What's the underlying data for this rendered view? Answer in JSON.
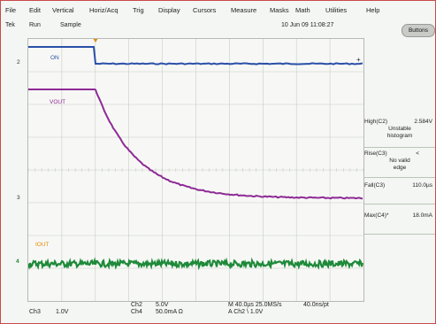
{
  "menu": [
    "File",
    "Edit",
    "Vertical",
    "Horiz/Acq",
    "Trig",
    "Display",
    "Cursors",
    "Measure",
    "Masks",
    "Math",
    "Utilities",
    "Help"
  ],
  "status": {
    "brand": "Tek",
    "run": "Run",
    "mode": "Sample",
    "datetime": "10 Jun 09 11:08:27"
  },
  "buttons_label": "Buttons",
  "channel_markers": {
    "ch2": "2",
    "ch3": "3",
    "ch4": "4"
  },
  "waveform_labels": {
    "on": "ON",
    "vout": "VOUT",
    "iout": "IOUT"
  },
  "measurements": [
    {
      "label": "High(C2)",
      "value": "2.584V",
      "sub": [
        "Unstable",
        "histogram"
      ]
    },
    {
      "label": "Rise(C3)",
      "value": "<",
      "sub": [
        "No valid",
        "edge"
      ]
    },
    {
      "label": "Fall(C3)",
      "value": "110.0µs",
      "sub": []
    },
    {
      "label": "Max(C4)*",
      "value": "18.0mA",
      "sub": []
    }
  ],
  "bottom": {
    "ch3_label": "Ch3",
    "ch3_scale": "1.0V",
    "ch2_label": "Ch2",
    "ch2_scale": "5.0V",
    "ch4_label": "Ch4",
    "ch4_scale": "50.0mA Ω",
    "timebase": "M 40.0µs 25.0MS/s",
    "record": "40.0ns/pt",
    "trigger": "A Ch2 \\ 1.0V"
  },
  "colors": {
    "ch2": "#2a4fa8",
    "ch3": "#8e2a96",
    "ch4": "#1f8a3a",
    "trigger": "#e08a00"
  }
}
